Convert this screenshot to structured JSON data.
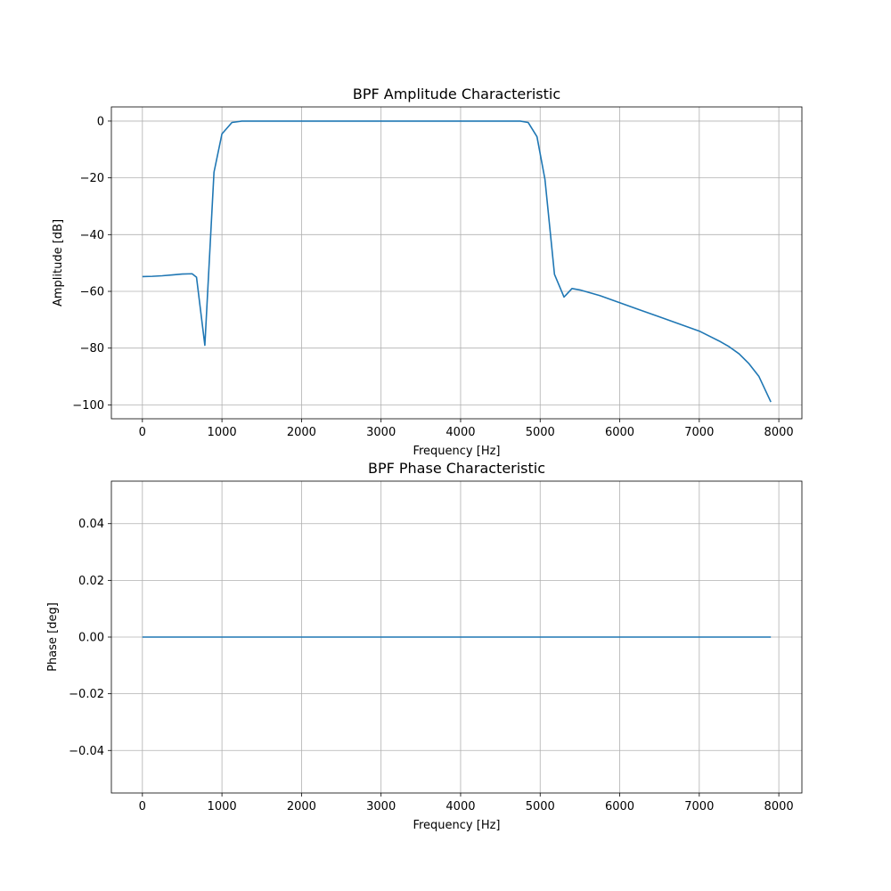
{
  "chart_data": [
    {
      "type": "line",
      "title": "BPF Amplitude Characteristic",
      "xlabel": "Frequency [Hz]",
      "ylabel": "Amplitude [dB]",
      "xlim": [
        -390,
        8290
      ],
      "ylim": [
        -104.9,
        5
      ],
      "xticks": [
        0,
        1000,
        2000,
        3000,
        4000,
        5000,
        6000,
        7000,
        8000
      ],
      "yticks": [
        0,
        -20,
        -40,
        -60,
        -80,
        -100
      ],
      "grid": true,
      "color": "#1f77b4",
      "series": [
        {
          "x": [
            0,
            125,
            250,
            375,
            500,
            625,
            680,
            785,
            900,
            1000,
            1125,
            1250,
            1375,
            1500,
            2000,
            3000,
            4000,
            4600,
            4750,
            4850,
            4960,
            5060,
            5180,
            5300,
            5400,
            5500,
            5750,
            6000,
            6250,
            6500,
            6750,
            7000,
            7250,
            7375,
            7500,
            7625,
            7750,
            7900
          ],
          "y": [
            -54.8,
            -54.7,
            -54.5,
            -54.2,
            -53.9,
            -53.8,
            -55,
            -79,
            -18,
            -4.5,
            -0.5,
            0,
            0,
            0,
            0,
            0,
            0,
            0,
            0,
            -0.5,
            -5.5,
            -20.5,
            -54,
            -62,
            -59,
            -59.5,
            -61.5,
            -64,
            -66.5,
            -69,
            -71.5,
            -74,
            -77.5,
            -79.5,
            -82,
            -85.5,
            -90,
            -99
          ]
        }
      ]
    },
    {
      "type": "line",
      "title": "BPF Phase Characteristic",
      "xlabel": "Frequency [Hz]",
      "ylabel": "Phase [deg]",
      "xlim": [
        -390,
        8290
      ],
      "ylim": [
        -0.055,
        0.055
      ],
      "xticks": [
        0,
        1000,
        2000,
        3000,
        4000,
        5000,
        6000,
        7000,
        8000
      ],
      "yticks": [
        0.04,
        0.02,
        0.0,
        -0.02,
        -0.04
      ],
      "ytick_labels": [
        "0.04",
        "0.02",
        "0.00",
        "−0.02",
        "−0.04"
      ],
      "grid": true,
      "color": "#1f77b4",
      "series": [
        {
          "x": [
            0,
            7900
          ],
          "y": [
            0,
            0
          ]
        }
      ]
    }
  ]
}
